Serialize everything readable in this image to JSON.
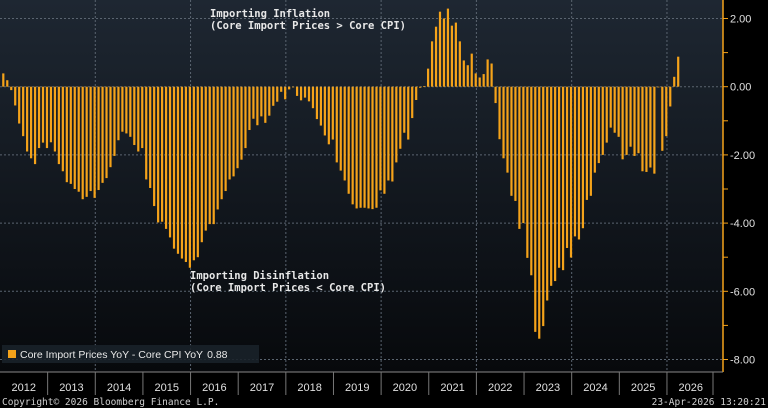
{
  "chart_data": {
    "type": "bar",
    "title": "",
    "xlabel": "",
    "ylabel": "",
    "ylim": [
      -8.3,
      2.5
    ],
    "start": "2012-01",
    "frequency": "monthly",
    "yticks": [
      2,
      0,
      -2,
      -4,
      -6,
      -8
    ],
    "ytick_labels": [
      "2.00",
      "0.00",
      "-2.00",
      "-4.00",
      "-6.00",
      "-8.00"
    ],
    "year_labels": [
      "2012",
      "2013",
      "2014",
      "2015",
      "2016",
      "2017",
      "2018",
      "2019",
      "2020",
      "2021",
      "2022",
      "2023",
      "2024",
      "2025",
      "2026"
    ],
    "grid": true,
    "series": [
      {
        "name": "Core Import Prices YoY - Core CPI YoY",
        "last_value": "0.88",
        "color": "#f5a31a",
        "values": [
          0.39,
          0.19,
          -0.1,
          -0.55,
          -1.08,
          -1.45,
          -1.9,
          -2.1,
          -2.27,
          -1.8,
          -1.64,
          -1.8,
          -1.63,
          -1.9,
          -2.27,
          -2.48,
          -2.8,
          -2.85,
          -3.0,
          -3.08,
          -3.3,
          -3.23,
          -3.06,
          -3.26,
          -3.03,
          -2.82,
          -2.68,
          -2.36,
          -2.03,
          -1.57,
          -1.32,
          -1.37,
          -1.47,
          -1.71,
          -1.9,
          -1.8,
          -2.72,
          -2.97,
          -3.5,
          -3.98,
          -3.96,
          -4.17,
          -4.42,
          -4.75,
          -4.9,
          -5.04,
          -5.14,
          -5.31,
          -5.09,
          -5.0,
          -4.56,
          -4.22,
          -4.03,
          -4.03,
          -3.6,
          -3.3,
          -3.06,
          -2.72,
          -2.63,
          -2.39,
          -2.14,
          -1.8,
          -1.27,
          -0.94,
          -1.13,
          -0.87,
          -1.06,
          -0.85,
          -0.56,
          -0.44,
          -0.15,
          -0.37,
          -0.08,
          -0.02,
          -0.27,
          -0.4,
          -0.32,
          -0.43,
          -0.63,
          -0.95,
          -1.14,
          -1.43,
          -1.69,
          -1.55,
          -2.22,
          -2.46,
          -2.75,
          -3.14,
          -3.45,
          -3.57,
          -3.55,
          -3.55,
          -3.57,
          -3.59,
          -3.55,
          -3.04,
          -3.14,
          -2.75,
          -2.78,
          -2.22,
          -1.82,
          -1.35,
          -1.55,
          -0.92,
          -0.39,
          -0.03,
          0.02,
          0.53,
          1.33,
          1.76,
          2.2,
          2.0,
          2.29,
          1.79,
          1.88,
          1.33,
          0.77,
          0.63,
          0.97,
          0.39,
          0.27,
          0.37,
          0.8,
          0.68,
          -0.48,
          -1.54,
          -2.1,
          -2.52,
          -3.2,
          -3.35,
          -4.17,
          -4.0,
          -5.02,
          -5.53,
          -7.19,
          -7.39,
          -7.02,
          -6.27,
          -5.84,
          -5.7,
          -5.31,
          -5.38,
          -4.73,
          -5.01,
          -4.39,
          -4.48,
          -4.15,
          -3.32,
          -3.2,
          -2.52,
          -2.24,
          -2.0,
          -1.64,
          -1.2,
          -1.35,
          -1.47,
          -2.13,
          -2.0,
          -1.76,
          -2.03,
          -1.95,
          -2.48,
          -2.5,
          -2.37,
          -2.55,
          -0.02,
          -1.88,
          -1.45,
          -0.58,
          0.29,
          0.88
        ]
      }
    ],
    "annotations": [
      {
        "line1": "Importing Inflation",
        "line2": "(Core Import Prices > Core CPI)"
      },
      {
        "line1": "Importing Disinflation",
        "line2": "(Core Import Prices < Core CPI)"
      }
    ],
    "legend_placement": "bottom-left"
  },
  "footer": {
    "copyright": "Copyright© 2026 Bloomberg Finance L.P.",
    "timestamp": "23-Apr-2026 13:20:21"
  }
}
